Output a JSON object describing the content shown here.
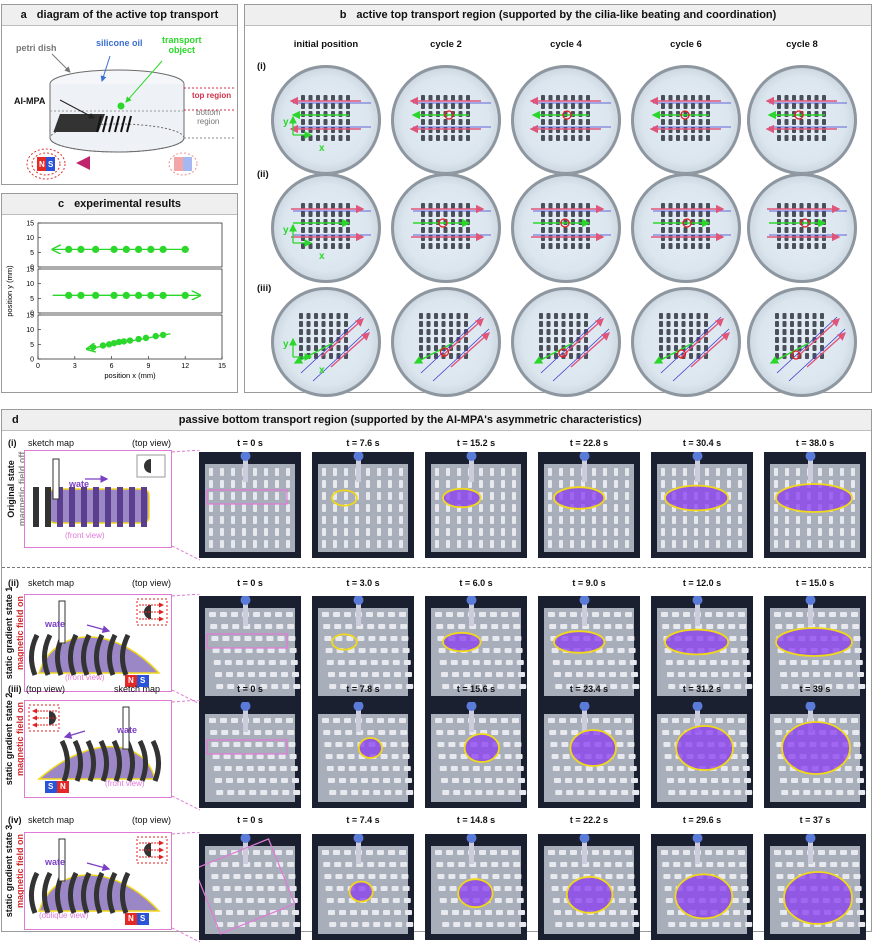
{
  "panel_a": {
    "letter": "a",
    "title": "diagram of the active top transport",
    "labels": {
      "petri_dish": "petri dish",
      "silicone_oil": "silicone oil",
      "transport_object": "transport\nobject",
      "ai_mpa": "AI-MPA",
      "top_region": "top region",
      "bottom_region": "bottom\nregion",
      "magnet_n": "N",
      "magnet_s": "S"
    }
  },
  "panel_b": {
    "letter": "b",
    "title": "active top transport region (supported by the cilia-like beating and coordination)",
    "columns": [
      "initial position",
      "cycle 2",
      "cycle 4",
      "cycle 6",
      "cycle 8"
    ],
    "rows": [
      "(i)",
      "(ii)",
      "(iii)"
    ],
    "axis_x": "x",
    "axis_y": "y"
  },
  "panel_c": {
    "letter": "c",
    "title": "experimental results"
  },
  "chart_data": {
    "type": "scatter",
    "xlabel": "position x (mm)",
    "ylabel": "position y (mm)",
    "xlim": [
      0,
      15
    ],
    "ylim": [
      0,
      15
    ],
    "xticks": [
      0,
      3,
      6,
      9,
      12,
      15
    ],
    "yticks": [
      0,
      5,
      10,
      15
    ],
    "series": [
      {
        "x": [
          2.5,
          3.5,
          4.7,
          6.2,
          7.2,
          8.2,
          9.2,
          10.2,
          12.0
        ],
        "y": [
          6,
          6,
          6,
          6,
          6,
          6,
          6,
          6,
          6
        ]
      },
      {
        "x": [
          2.5,
          3.5,
          4.7,
          6.2,
          7.2,
          8.2,
          9.2,
          10.2,
          12.0
        ],
        "y": [
          6,
          6,
          6,
          6,
          6,
          6,
          6,
          6,
          6
        ]
      },
      {
        "x": [
          4.5,
          5.3,
          5.8,
          6.2,
          6.6,
          7.0,
          7.5,
          8.2,
          8.8,
          9.6,
          10.2
        ],
        "y": [
          4.0,
          4.6,
          5.0,
          5.4,
          5.8,
          6.0,
          6.3,
          6.8,
          7.2,
          7.8,
          8.2
        ]
      }
    ]
  },
  "panel_d": {
    "letter": "d",
    "title": "passive bottom transport region (supported by the AI-MPA's asymmetric characteristics)",
    "rows": [
      {
        "numeral": "(i)",
        "state": "Original state",
        "field": "magnetic field off",
        "sketch_title": "sketch map",
        "top_view": "(top view)",
        "water": "wate",
        "view": "(front view)",
        "times": [
          "t = 0 s",
          "t = 7.6  s",
          "t = 15.2  s",
          "t = 22.8  s",
          "t = 30.4  s",
          "t = 38.0  s"
        ]
      },
      {
        "numeral": "(ii)",
        "state": "static gradient state 1",
        "field": "magnetic field on",
        "sketch_title": "sketch map",
        "top_view": "(top view)",
        "water": "wate",
        "view": "(front view)",
        "magnet": [
          "N",
          "S"
        ],
        "times": [
          "t = 0 s",
          "t = 3.0 s",
          "t = 6.0 s",
          "t = 9.0 s",
          "t = 12.0 s",
          "t = 15.0 s"
        ]
      },
      {
        "numeral": "(iii)",
        "state": "static gradient state 2",
        "field": "magnetic field on",
        "sketch_title": "sketch map",
        "top_view": "(top view)",
        "water": "wate",
        "view": "(front view)",
        "magnet": [
          "S",
          "N"
        ],
        "times": [
          "t = 0 s",
          "t = 7.8 s",
          "t = 15.6 s",
          "t = 23.4 s",
          "t = 31.2 s",
          "t = 39 s"
        ]
      },
      {
        "numeral": "(iv)",
        "state": "static gradient state 3",
        "field": "magnetic field on",
        "sketch_title": "sketch map",
        "top_view": "(top view)",
        "water": "wate",
        "view": "(oblique view)",
        "magnet": [
          "N",
          "S"
        ],
        "times": [
          "t = 0 s",
          "t = 7.4 s",
          "t = 14.8 s",
          "t = 22.2 s",
          "t = 29.6 s",
          "t = 37 s"
        ]
      }
    ]
  },
  "colors": {
    "green": "#2bd72b",
    "purple": "#7b3fc4",
    "yellow": "#f1d81a",
    "red_arrow": "#e0567a",
    "blue_line": "#3a3ad0",
    "pink_frame": "#e07ad7"
  }
}
